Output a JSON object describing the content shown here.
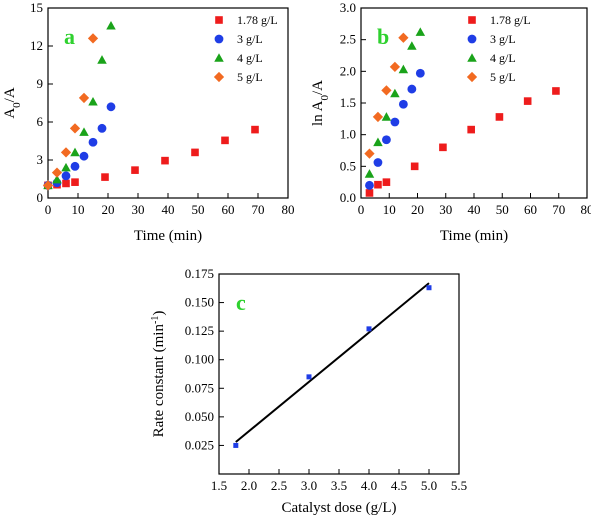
{
  "colors": {
    "red": "#ee1c1c",
    "blue": "#1f3de6",
    "green": "#1aa31a",
    "orange": "#f26a21",
    "panel_letter": "#2fd12f",
    "fit_line": "#000000",
    "c_marker": "#1f3de6"
  },
  "chart_data": [
    {
      "id": "a",
      "type": "scatter",
      "panel_label": "a",
      "xlabel": "Time (min)",
      "ylabel": "A0/A",
      "xlim": [
        0,
        80
      ],
      "ylim": [
        0,
        15
      ],
      "xticks": [
        0,
        10,
        20,
        30,
        40,
        50,
        60,
        70,
        80
      ],
      "yticks": [
        0,
        3,
        6,
        9,
        12,
        15
      ],
      "legend_position": "top-right",
      "series": [
        {
          "name": "1.78 g/L",
          "marker": "square",
          "color": "#ee1c1c",
          "x": [
            0,
            3,
            6,
            9,
            19,
            29,
            39,
            49,
            59,
            69
          ],
          "y": [
            1.0,
            1.05,
            1.15,
            1.25,
            1.65,
            2.2,
            2.95,
            3.6,
            4.55,
            5.4
          ]
        },
        {
          "name": "3 g/L",
          "marker": "circle",
          "color": "#1f3de6",
          "x": [
            0,
            3,
            6,
            9,
            12,
            15,
            18,
            21
          ],
          "y": [
            1.0,
            1.2,
            1.75,
            2.5,
            3.3,
            4.4,
            5.5,
            7.2
          ]
        },
        {
          "name": "4 g/L",
          "marker": "triangle",
          "color": "#1aa31a",
          "x": [
            0,
            3,
            6,
            9,
            12,
            15,
            18,
            21
          ],
          "y": [
            1.0,
            1.45,
            2.4,
            3.6,
            5.2,
            7.6,
            10.9,
            13.6
          ]
        },
        {
          "name": "5 g/L",
          "marker": "diamond",
          "color": "#f26a21",
          "x": [
            0,
            3,
            6,
            9,
            12,
            15
          ],
          "y": [
            1.0,
            2.0,
            3.6,
            5.5,
            7.9,
            12.6
          ]
        }
      ]
    },
    {
      "id": "b",
      "type": "scatter",
      "panel_label": "b",
      "xlabel": "Time (min)",
      "ylabel": "ln A0/A",
      "xlim": [
        0,
        80
      ],
      "ylim": [
        0,
        3.0
      ],
      "xticks": [
        0,
        10,
        20,
        30,
        40,
        50,
        60,
        70,
        80
      ],
      "yticks": [
        0.0,
        0.5,
        1.0,
        1.5,
        2.0,
        2.5,
        3.0
      ],
      "legend_position": "top-right",
      "series": [
        {
          "name": "1.78 g/L",
          "marker": "square",
          "color": "#ee1c1c",
          "x": [
            3,
            6,
            9,
            19,
            29,
            39,
            49,
            59,
            69
          ],
          "y": [
            0.08,
            0.21,
            0.25,
            0.5,
            0.8,
            1.08,
            1.28,
            1.53,
            1.69
          ]
        },
        {
          "name": "3 g/L",
          "marker": "circle",
          "color": "#1f3de6",
          "x": [
            3,
            6,
            9,
            12,
            15,
            18,
            21
          ],
          "y": [
            0.2,
            0.56,
            0.92,
            1.2,
            1.48,
            1.72,
            1.97
          ]
        },
        {
          "name": "4 g/L",
          "marker": "triangle",
          "color": "#1aa31a",
          "x": [
            3,
            6,
            9,
            12,
            15,
            18,
            21
          ],
          "y": [
            0.38,
            0.88,
            1.28,
            1.65,
            2.03,
            2.4,
            2.62
          ]
        },
        {
          "name": "5 g/L",
          "marker": "diamond",
          "color": "#f26a21",
          "x": [
            3,
            6,
            9,
            12,
            15
          ],
          "y": [
            0.7,
            1.28,
            1.7,
            2.07,
            2.53
          ]
        }
      ]
    },
    {
      "id": "c",
      "type": "scatter",
      "panel_label": "c",
      "xlabel": "Catalyst dose (g/L)",
      "ylabel": "Rate constant (min-1)",
      "xlim": [
        1.5,
        5.5
      ],
      "ylim": [
        0.0,
        0.175
      ],
      "xticks": [
        1.5,
        2.0,
        2.5,
        3.0,
        3.5,
        4.0,
        4.5,
        5.0,
        5.5
      ],
      "yticks": [
        0.025,
        0.05,
        0.075,
        0.1,
        0.125,
        0.15,
        0.175
      ],
      "series": [
        {
          "marker": "square",
          "color": "#1f3de6",
          "x": [
            1.78,
            3.0,
            4.0,
            5.0
          ],
          "y": [
            0.025,
            0.085,
            0.127,
            0.163
          ]
        }
      ],
      "fit_line": {
        "x": [
          1.78,
          5.0
        ],
        "y": [
          0.028,
          0.167
        ]
      }
    }
  ]
}
